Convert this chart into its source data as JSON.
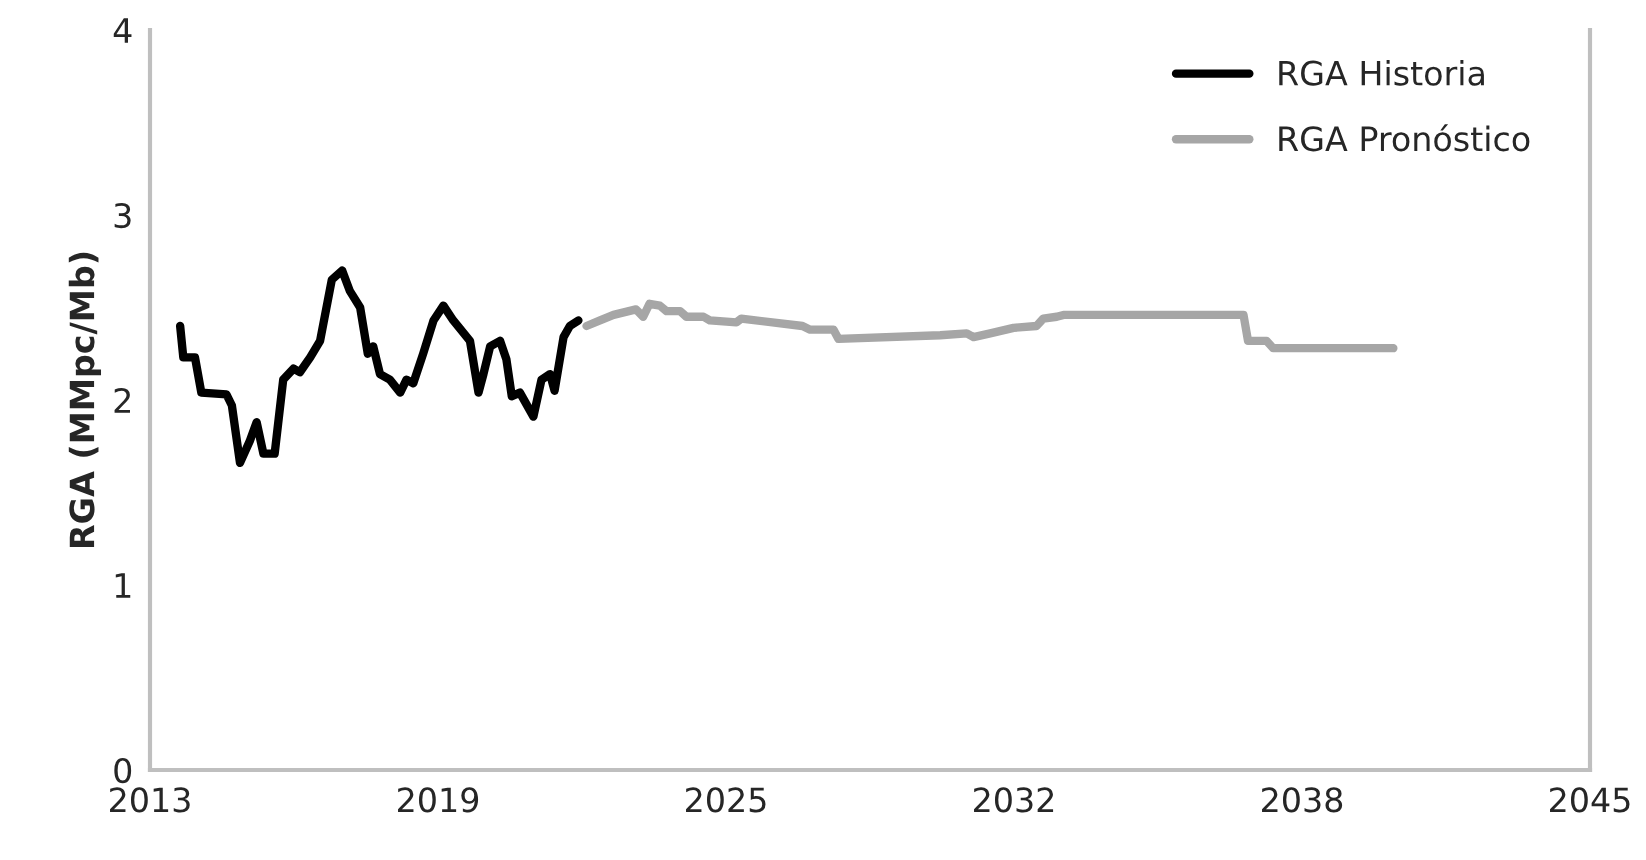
{
  "chart_data": {
    "type": "line",
    "ylabel": "RGA (MMpc/Mb)",
    "xlim": [
      2012.6,
      2044.6
    ],
    "xticks": [
      {
        "value": 2012.6,
        "label": "2013"
      },
      2019,
      {
        "value": 2025.4,
        "label": "2025"
      },
      {
        "value": 2031.8,
        "label": "2032"
      },
      {
        "value": 2038.2,
        "label": "2038"
      },
      {
        "value": 2044.6,
        "label": "2045"
      }
    ],
    "ylim": [
      0,
      4
    ],
    "yticks": [
      0,
      1,
      2,
      3,
      4
    ],
    "grid": false,
    "legend": "top right",
    "line_style": "solid",
    "marker": "none",
    "series": [
      {
        "name": "RGA Historia",
        "color": "#000000",
        "x": [
          2013.27,
          2013.34,
          2013.6,
          2013.74,
          2014.3,
          2014.42,
          2014.6,
          2014.82,
          2014.97,
          2015.12,
          2015.37,
          2015.56,
          2015.79,
          2015.93,
          2016.16,
          2016.38,
          2016.64,
          2016.87,
          2017.04,
          2017.27,
          2017.44,
          2017.56,
          2017.71,
          2017.93,
          2018.16,
          2018.3,
          2018.45,
          2018.67,
          2018.9,
          2019.12,
          2019.34,
          2019.71,
          2019.9,
          2020.01,
          2020.16,
          2020.38,
          2020.52,
          2020.64,
          2020.82,
          2021.12,
          2021.3,
          2021.49,
          2021.59,
          2021.79,
          2021.93,
          2022.12
        ],
        "values": [
          2.4,
          2.23,
          2.23,
          2.04,
          2.03,
          1.97,
          1.66,
          1.78,
          1.88,
          1.71,
          1.71,
          2.11,
          2.17,
          2.15,
          2.23,
          2.32,
          2.65,
          2.7,
          2.59,
          2.5,
          2.25,
          2.29,
          2.14,
          2.11,
          2.04,
          2.11,
          2.09,
          2.25,
          2.43,
          2.51,
          2.43,
          2.32,
          2.04,
          2.14,
          2.29,
          2.32,
          2.22,
          2.02,
          2.04,
          1.91,
          2.11,
          2.14,
          2.05,
          2.34,
          2.4,
          2.43
        ]
      },
      {
        "name": "RGA Pronóstico",
        "color": "#a6a6a6",
        "x": [
          2022.3,
          2022.6,
          2022.9,
          2023.4,
          2023.56,
          2023.7,
          2023.93,
          2024.08,
          2024.38,
          2024.52,
          2024.9,
          2025.04,
          2025.63,
          2025.74,
          2027.1,
          2027.27,
          2027.79,
          2027.9,
          2030.16,
          2030.75,
          2030.9,
          2031.27,
          2031.79,
          2032.3,
          2032.45,
          2032.75,
          2032.9,
          2036.9,
          2037.0,
          2037.41,
          2037.56,
          2040.23
        ],
        "values": [
          2.4,
          2.43,
          2.46,
          2.49,
          2.45,
          2.52,
          2.51,
          2.48,
          2.48,
          2.45,
          2.45,
          2.43,
          2.42,
          2.44,
          2.4,
          2.38,
          2.38,
          2.33,
          2.35,
          2.36,
          2.34,
          2.36,
          2.39,
          2.4,
          2.44,
          2.45,
          2.46,
          2.46,
          2.32,
          2.32,
          2.28,
          2.28
        ]
      }
    ]
  }
}
